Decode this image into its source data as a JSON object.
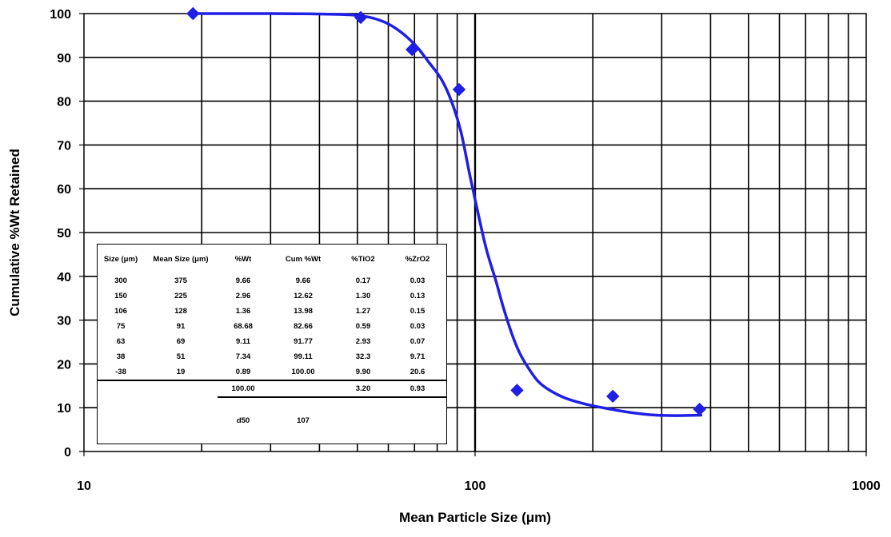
{
  "chart_data": {
    "type": "line",
    "xscale": "log",
    "xlim": [
      10,
      1000
    ],
    "ylim": [
      0,
      100
    ],
    "x_ticks": [
      "10",
      "100",
      "1000"
    ],
    "y_ticks": [
      "0",
      "10",
      "20",
      "30",
      "40",
      "50",
      "60",
      "70",
      "80",
      "90",
      "100"
    ],
    "xlabel": "Mean Particle Size (μm)",
    "ylabel": "Cumulative %Wt Retained",
    "grid": true,
    "series_color": "#1F1FE6",
    "points": [
      {
        "x": 19,
        "y": 100.0
      },
      {
        "x": 51,
        "y": 99.11
      },
      {
        "x": 69,
        "y": 91.77
      },
      {
        "x": 91,
        "y": 82.66
      },
      {
        "x": 128,
        "y": 13.98
      },
      {
        "x": 225,
        "y": 12.62
      },
      {
        "x": 375,
        "y": 9.66
      }
    ],
    "fit_curve": [
      {
        "x": 19,
        "y": 100
      },
      {
        "x": 30,
        "y": 100
      },
      {
        "x": 40,
        "y": 99.9
      },
      {
        "x": 50,
        "y": 99.6
      },
      {
        "x": 57,
        "y": 98.5
      },
      {
        "x": 63,
        "y": 96.5
      },
      {
        "x": 70,
        "y": 93
      },
      {
        "x": 76,
        "y": 89
      },
      {
        "x": 82,
        "y": 85
      },
      {
        "x": 87,
        "y": 80
      },
      {
        "x": 92,
        "y": 73
      },
      {
        "x": 97,
        "y": 63
      },
      {
        "x": 102,
        "y": 54
      },
      {
        "x": 107,
        "y": 46
      },
      {
        "x": 113,
        "y": 39
      },
      {
        "x": 118,
        "y": 33
      },
      {
        "x": 124,
        "y": 27
      },
      {
        "x": 130,
        "y": 22.5
      },
      {
        "x": 137,
        "y": 19
      },
      {
        "x": 145,
        "y": 16
      },
      {
        "x": 155,
        "y": 14
      },
      {
        "x": 170,
        "y": 12.2
      },
      {
        "x": 190,
        "y": 10.9
      },
      {
        "x": 215,
        "y": 9.9
      },
      {
        "x": 250,
        "y": 8.9
      },
      {
        "x": 290,
        "y": 8.3
      },
      {
        "x": 330,
        "y": 8.2
      },
      {
        "x": 378,
        "y": 8.3
      }
    ],
    "table": {
      "headers": [
        "Size (μm)",
        "Mean Size (μm)",
        "%Wt",
        "Cum %Wt",
        "%TiO2",
        "%ZrO2"
      ],
      "rows": [
        [
          "300",
          "375",
          "9.66",
          "9.66",
          "0.17",
          "0.03"
        ],
        [
          "150",
          "225",
          "2.96",
          "12.62",
          "1.30",
          "0.13"
        ],
        [
          "106",
          "128",
          "1.36",
          "13.98",
          "1.27",
          "0.15"
        ],
        [
          "75",
          "91",
          "68.68",
          "82.66",
          "0.59",
          "0.03"
        ],
        [
          "63",
          "69",
          "9.11",
          "91.77",
          "2.93",
          "0.07"
        ],
        [
          "38",
          "51",
          "7.34",
          "99.11",
          "32.3",
          "9.71"
        ],
        [
          "-38",
          "19",
          "0.89",
          "100.00",
          "9.90",
          "20.6"
        ]
      ],
      "totals": [
        "",
        "",
        "100.00",
        "",
        "3.20",
        "0.93"
      ],
      "d50_label": "d50",
      "d50_value": "107"
    }
  }
}
